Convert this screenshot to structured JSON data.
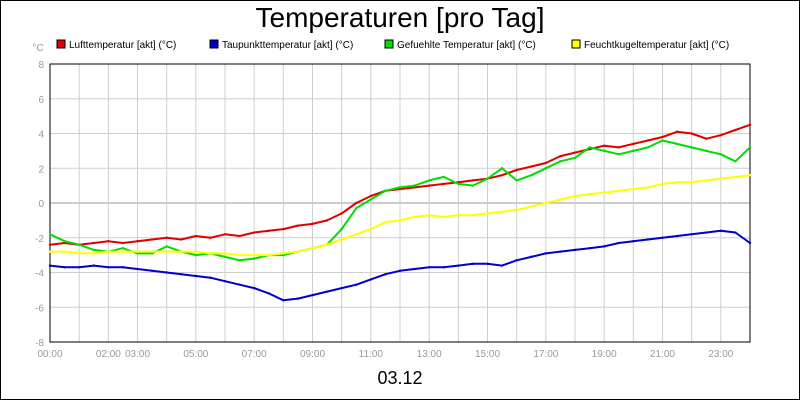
{
  "chart_data": {
    "type": "line",
    "title": "Temperaturen [pro Tag]",
    "footer": "03.12",
    "yunit": "°C",
    "ylim": [
      -8,
      8
    ],
    "yticks": [
      8,
      6,
      4,
      2,
      0,
      -2,
      -4,
      -6,
      -8
    ],
    "xlim": [
      0,
      24
    ],
    "xticks": [
      {
        "label": "00:00",
        "x": 0
      },
      {
        "label": "02:00",
        "x": 2
      },
      {
        "label": "03:00",
        "x": 3
      },
      {
        "label": "05:00",
        "x": 5
      },
      {
        "label": "07:00",
        "x": 7
      },
      {
        "label": "09:00",
        "x": 9
      },
      {
        "label": "11:00",
        "x": 11
      },
      {
        "label": "13:00",
        "x": 13
      },
      {
        "label": "15:00",
        "x": 15
      },
      {
        "label": "17:00",
        "x": 17
      },
      {
        "label": "19:00",
        "x": 19
      },
      {
        "label": "21:00",
        "x": 21
      },
      {
        "label": "23:00",
        "x": 23
      }
    ],
    "grid": true,
    "legend_position": "top",
    "series": [
      {
        "name": "Lufttemperatur [akt] (°C)",
        "color": "#e00000",
        "x": [
          0,
          0.5,
          1,
          1.5,
          2,
          2.5,
          3,
          3.5,
          4,
          4.5,
          5,
          5.5,
          6,
          6.5,
          7,
          7.5,
          8,
          8.5,
          9,
          9.5,
          10,
          10.5,
          11,
          11.5,
          12,
          12.5,
          13,
          13.5,
          14,
          14.5,
          15,
          15.5,
          16,
          16.5,
          17,
          17.5,
          18,
          18.5,
          19,
          19.5,
          20,
          20.5,
          21,
          21.5,
          22,
          22.5,
          23,
          23.5,
          24
        ],
        "values": [
          -2.4,
          -2.3,
          -2.4,
          -2.3,
          -2.2,
          -2.3,
          -2.2,
          -2.1,
          -2.0,
          -2.1,
          -1.9,
          -2.0,
          -1.8,
          -1.9,
          -1.7,
          -1.6,
          -1.5,
          -1.3,
          -1.2,
          -1.0,
          -0.6,
          0.0,
          0.4,
          0.7,
          0.8,
          0.9,
          1.0,
          1.1,
          1.2,
          1.3,
          1.4,
          1.6,
          1.9,
          2.1,
          2.3,
          2.7,
          2.9,
          3.1,
          3.3,
          3.2,
          3.4,
          3.6,
          3.8,
          4.1,
          4.0,
          3.7,
          3.9,
          4.2,
          4.5
        ]
      },
      {
        "name": "Taupunkttemperatur [akt] (°C)",
        "color": "#0000cc",
        "x": [
          0,
          0.5,
          1,
          1.5,
          2,
          2.5,
          3,
          3.5,
          4,
          4.5,
          5,
          5.5,
          6,
          6.5,
          7,
          7.5,
          8,
          8.5,
          9,
          9.5,
          10,
          10.5,
          11,
          11.5,
          12,
          12.5,
          13,
          13.5,
          14,
          14.5,
          15,
          15.5,
          16,
          16.5,
          17,
          17.5,
          18,
          18.5,
          19,
          19.5,
          20,
          20.5,
          21,
          21.5,
          22,
          22.5,
          23,
          23.5,
          24
        ],
        "values": [
          -3.6,
          -3.7,
          -3.7,
          -3.6,
          -3.7,
          -3.7,
          -3.8,
          -3.9,
          -4.0,
          -4.1,
          -4.2,
          -4.3,
          -4.5,
          -4.7,
          -4.9,
          -5.2,
          -5.6,
          -5.5,
          -5.3,
          -5.1,
          -4.9,
          -4.7,
          -4.4,
          -4.1,
          -3.9,
          -3.8,
          -3.7,
          -3.7,
          -3.6,
          -3.5,
          -3.5,
          -3.6,
          -3.3,
          -3.1,
          -2.9,
          -2.8,
          -2.7,
          -2.6,
          -2.5,
          -2.3,
          -2.2,
          -2.1,
          -2.0,
          -1.9,
          -1.8,
          -1.7,
          -1.6,
          -1.7,
          -2.3
        ]
      },
      {
        "name": "Gefuehlte Temperatur [akt] (°C)",
        "color": "#00dd00",
        "x": [
          0,
          0.5,
          1,
          1.5,
          2,
          2.5,
          3,
          3.5,
          4,
          4.5,
          5,
          5.5,
          6,
          6.5,
          7,
          7.5,
          8,
          8.5,
          9,
          9.5,
          10,
          10.5,
          11,
          11.5,
          12,
          12.5,
          13,
          13.5,
          14,
          14.5,
          15,
          15.5,
          16,
          16.5,
          17,
          17.5,
          18,
          18.5,
          19,
          19.5,
          20,
          20.5,
          21,
          21.5,
          22,
          22.5,
          23,
          23.5,
          24
        ],
        "values": [
          -1.8,
          -2.2,
          -2.4,
          -2.7,
          -2.8,
          -2.6,
          -2.9,
          -2.9,
          -2.5,
          -2.8,
          -3.0,
          -2.9,
          -3.1,
          -3.3,
          -3.2,
          -3.0,
          -3.0,
          -2.8,
          -2.6,
          -2.4,
          -1.5,
          -0.3,
          0.2,
          0.7,
          0.9,
          1.0,
          1.3,
          1.5,
          1.1,
          1.0,
          1.4,
          2.0,
          1.3,
          1.6,
          2.0,
          2.4,
          2.6,
          3.2,
          3.0,
          2.8,
          3.0,
          3.2,
          3.6,
          3.4,
          3.2,
          3.0,
          2.8,
          2.4,
          3.2
        ]
      },
      {
        "name": "Feuchtkugeltemperatur [akt] (°C)",
        "color": "#ffff00",
        "x": [
          0,
          0.5,
          1,
          1.5,
          2,
          2.5,
          3,
          3.5,
          4,
          4.5,
          5,
          5.5,
          6,
          6.5,
          7,
          7.5,
          8,
          8.5,
          9,
          9.5,
          10,
          10.5,
          11,
          11.5,
          12,
          12.5,
          13,
          13.5,
          14,
          14.5,
          15,
          15.5,
          16,
          16.5,
          17,
          17.5,
          18,
          18.5,
          19,
          19.5,
          20,
          20.5,
          21,
          21.5,
          22,
          22.5,
          23,
          23.5,
          24
        ],
        "values": [
          -2.8,
          -2.8,
          -2.9,
          -2.9,
          -2.8,
          -2.8,
          -2.8,
          -2.8,
          -2.8,
          -2.8,
          -2.8,
          -2.9,
          -2.9,
          -3.0,
          -3.0,
          -3.0,
          -2.9,
          -2.8,
          -2.6,
          -2.4,
          -2.1,
          -1.8,
          -1.5,
          -1.1,
          -1.0,
          -0.8,
          -0.7,
          -0.8,
          -0.7,
          -0.7,
          -0.6,
          -0.5,
          -0.4,
          -0.2,
          0.0,
          0.2,
          0.4,
          0.5,
          0.6,
          0.7,
          0.8,
          0.9,
          1.1,
          1.2,
          1.2,
          1.3,
          1.4,
          1.5,
          1.6
        ]
      }
    ]
  }
}
